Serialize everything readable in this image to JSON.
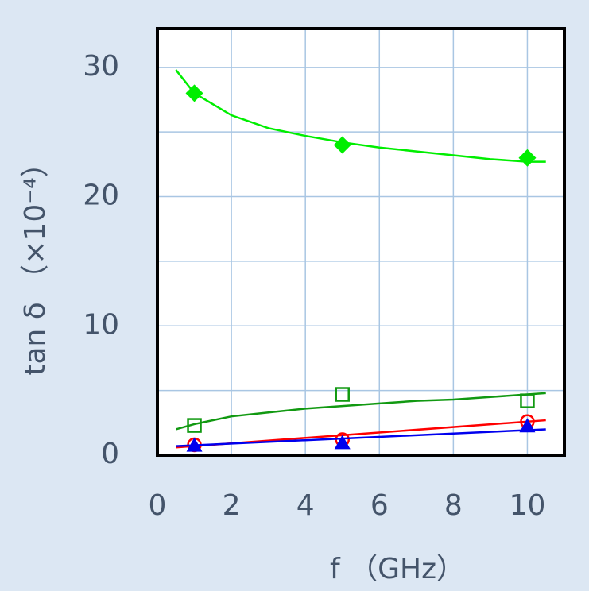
{
  "chart_data": {
    "type": "scatter",
    "x_label": "f （GHz）",
    "y_label": "tan δ （×10⁻⁴）",
    "xlim": [
      0,
      11
    ],
    "xticks": [
      0,
      2,
      4,
      6,
      8,
      10
    ],
    "ylim": [
      0,
      33
    ],
    "yticks": [
      0,
      10,
      20,
      30
    ],
    "xgrid": [
      2,
      4,
      6,
      8,
      10
    ],
    "ygrid": [
      5,
      10,
      15,
      20,
      25,
      30
    ],
    "grid_color": "#a9c6e3",
    "x": [
      1,
      5,
      10
    ],
    "series": [
      {
        "color": "#00ee00",
        "marker": "diamond",
        "values": [
          28,
          24,
          23
        ],
        "fit": {
          "x": [
            0.5,
            1,
            2,
            3,
            4,
            5,
            6,
            7,
            8,
            9,
            10,
            10.5
          ],
          "values": [
            29.8,
            28.0,
            26.3,
            25.3,
            24.7,
            24.2,
            23.8,
            23.5,
            23.2,
            22.9,
            22.7,
            22.7
          ]
        }
      },
      {
        "color": "#119911",
        "marker": "open-square",
        "values": [
          2.3,
          4.7,
          4.2
        ],
        "fit": {
          "x": [
            0.5,
            1,
            2,
            3,
            4,
            5,
            6,
            7,
            8,
            9,
            10,
            10.5
          ],
          "values": [
            2.0,
            2.4,
            3.0,
            3.3,
            3.6,
            3.8,
            4.0,
            4.2,
            4.3,
            4.5,
            4.7,
            4.8
          ]
        }
      },
      {
        "color": "#ff0000",
        "marker": "open-circle",
        "values": [
          0.8,
          1.2,
          2.6
        ],
        "fit": {
          "x": [
            0.5,
            10.5
          ],
          "values": [
            0.6,
            2.7
          ]
        }
      },
      {
        "color": "#0000ee",
        "marker": "triangle",
        "values": [
          0.7,
          0.9,
          2.2
        ],
        "fit": {
          "x": [
            0.5,
            10.5
          ],
          "values": [
            0.7,
            2.0
          ]
        }
      }
    ]
  }
}
